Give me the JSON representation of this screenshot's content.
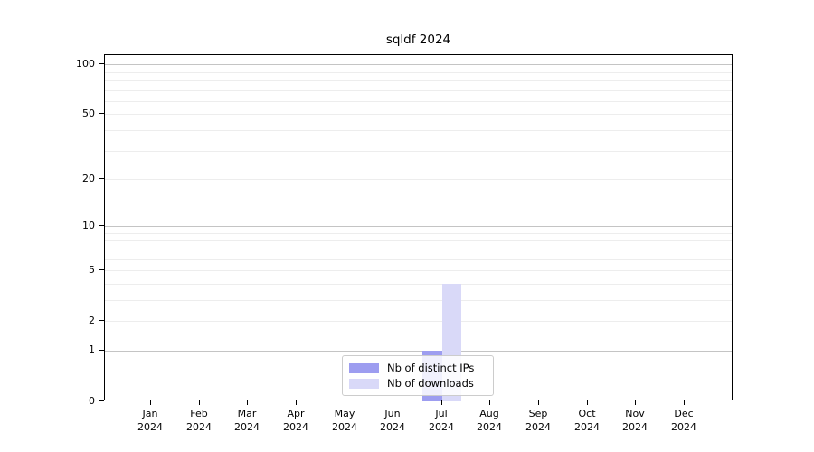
{
  "page": {
    "background": "#ffffff",
    "axis_color": "#000000"
  },
  "chart_data": {
    "type": "bar",
    "title": "sqldf 2024",
    "xlabel": "",
    "ylabel": "",
    "categories": [
      "Jan",
      "Feb",
      "Mar",
      "Apr",
      "May",
      "Jun",
      "Jul",
      "Aug",
      "Sep",
      "Oct",
      "Nov",
      "Dec"
    ],
    "year_label": "2024",
    "series": [
      {
        "name": "Nb of distinct IPs",
        "color": "#9d9df0",
        "values": [
          0,
          0,
          0,
          0,
          0,
          0,
          1,
          0,
          0,
          0,
          0,
          0
        ]
      },
      {
        "name": "Nb of downloads",
        "color": "#d9d9f8",
        "values": [
          0,
          0,
          0,
          0,
          0,
          0,
          4,
          0,
          0,
          0,
          0,
          0
        ]
      }
    ],
    "yscale": "log1p",
    "yticks": [
      0,
      1,
      2,
      5,
      10,
      20,
      50,
      100
    ],
    "ylim": [
      0,
      113
    ],
    "grid": {
      "on": true,
      "decade_values": [
        1,
        10,
        100
      ],
      "minor_values": [
        2,
        3,
        4,
        5,
        6,
        7,
        8,
        9,
        20,
        30,
        40,
        50,
        60,
        70,
        80,
        90
      ],
      "decade_color": "#c4c4c4",
      "minor_color": "#ededed"
    },
    "legend_position": "bottom-center"
  }
}
